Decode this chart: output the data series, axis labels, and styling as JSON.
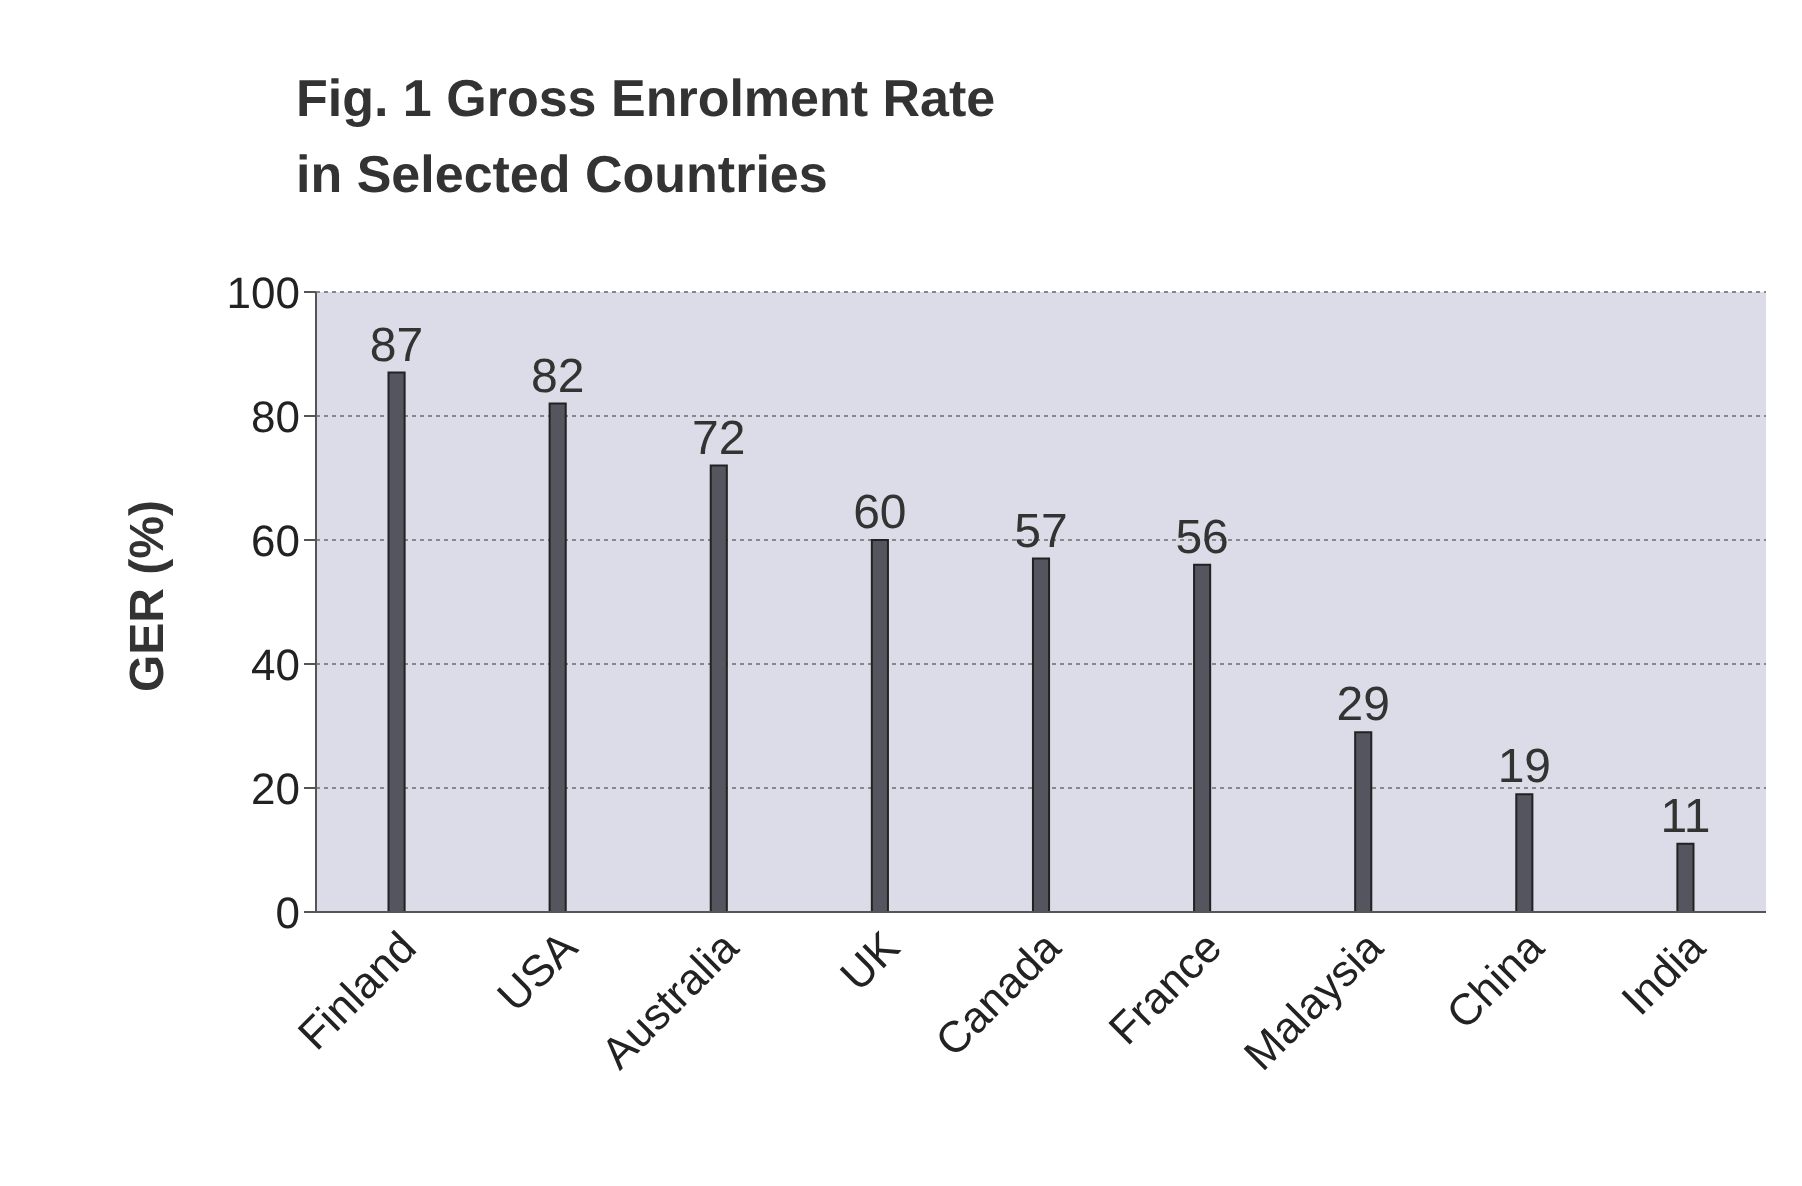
{
  "chart_data": {
    "type": "bar",
    "title": "Fig. 1   Gross Enrolment Rate in Selected Countries",
    "ylabel": "GER (%)",
    "categories": [
      "Finland",
      "USA",
      "Australia",
      "UK",
      "Canada",
      "France",
      "Malaysia",
      "China",
      "India"
    ],
    "values": [
      87,
      82,
      72,
      60,
      57,
      56,
      29,
      19,
      11
    ],
    "color": "#55555f",
    "ylim": [
      0,
      100
    ],
    "yticks": [
      0,
      20,
      40,
      60,
      80,
      100
    ],
    "grid": "y",
    "data_labels": true
  }
}
